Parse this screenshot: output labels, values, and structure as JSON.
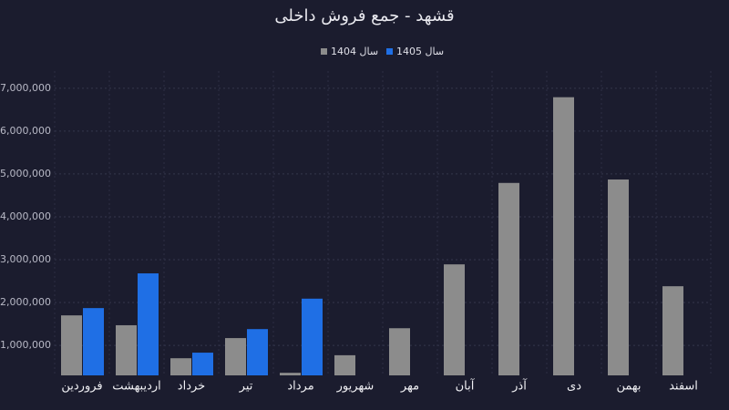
{
  "chart_data": {
    "type": "bar",
    "title": "قشهد - جمع فروش داخلی",
    "categories": [
      "فروردین",
      "اردیبهشت",
      "خرداد",
      "تیر",
      "مرداد",
      "شهریور",
      "مهر",
      "آبان",
      "آذر",
      "دی",
      "بهمن",
      "اسفند"
    ],
    "series": [
      {
        "name": "سال 1404",
        "color": "#8c8c8c",
        "values": [
          1700000,
          1470000,
          700000,
          1170000,
          360000,
          770000,
          1400000,
          2890000,
          4790000,
          6790000,
          4870000,
          2380000
        ]
      },
      {
        "name": "سال 1405",
        "color": "#1f6fe5",
        "values": [
          1870000,
          2680000,
          830000,
          1380000,
          2090000,
          null,
          null,
          null,
          null,
          null,
          null,
          null
        ]
      }
    ],
    "ylim": [
      300000,
      7400000
    ],
    "yticks": [
      {
        "value": 1000000,
        "label": "1,000,000"
      },
      {
        "value": 2000000,
        "label": "2,000,000"
      },
      {
        "value": 3000000,
        "label": "3,000,000"
      },
      {
        "value": 4000000,
        "label": "4,000,000"
      },
      {
        "value": 5000000,
        "label": "5,000,000"
      },
      {
        "value": 6000000,
        "label": "6,000,000"
      },
      {
        "value": 7000000,
        "label": "7,000,000"
      }
    ],
    "grid": true
  }
}
